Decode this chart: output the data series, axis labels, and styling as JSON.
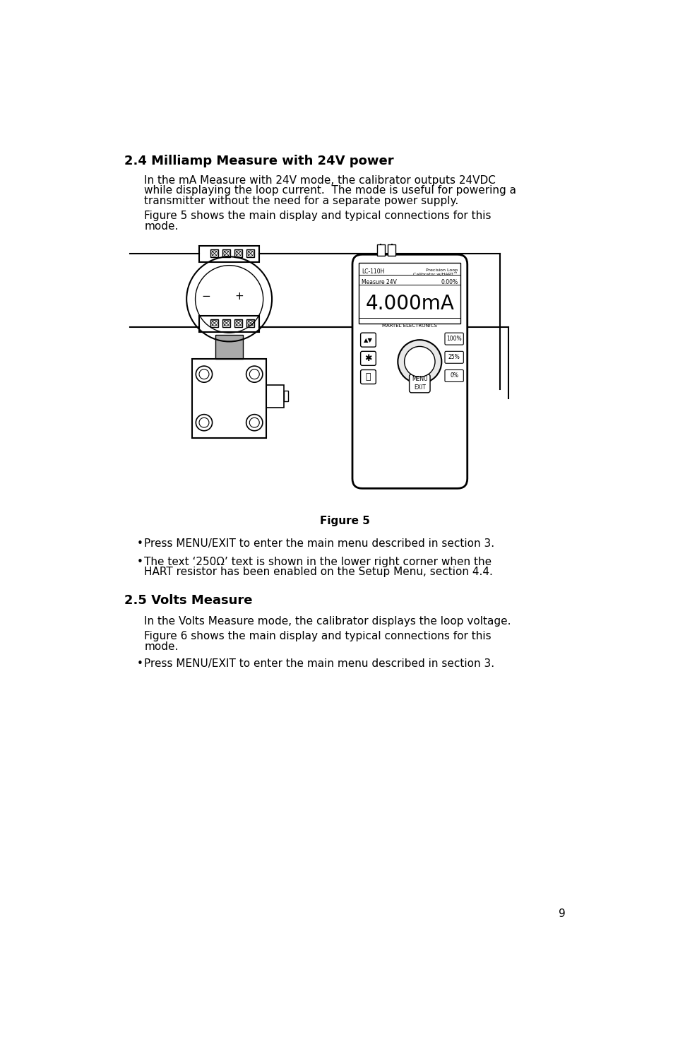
{
  "page_bg": "#ffffff",
  "text_color": "#000000",
  "heading1": "2.4 Milliamp Measure with 24V power",
  "para1_lines": [
    "In the mA Measure with 24V mode, the calibrator outputs 24VDC",
    "while displaying the loop current.  The mode is useful for powering a",
    "transmitter without the need for a separate power supply."
  ],
  "para2_lines": [
    "Figure 5 shows the main display and typical connections for this",
    "mode."
  ],
  "figure_caption": "Figure 5",
  "bullet1a": "Press MENU/EXIT to enter the main menu described in section 3.",
  "bullet1b_line1": "The text ‘250Ω’ text is shown in the lower right corner when the",
  "bullet1b_line2": "HART resistor has been enabled on the Setup Menu, section 4.4.",
  "heading2": "2.5 Volts Measure",
  "para3": "In the Volts Measure mode, the calibrator displays the loop voltage.",
  "para4_lines": [
    "Figure 6 shows the main display and typical connections for this",
    "mode."
  ],
  "bullet2a": "Press MENU/EXIT to enter the main menu described in section 3.",
  "page_number": "9",
  "heading_fontsize": 13,
  "body_fontsize": 11,
  "bullet_fontsize": 11
}
